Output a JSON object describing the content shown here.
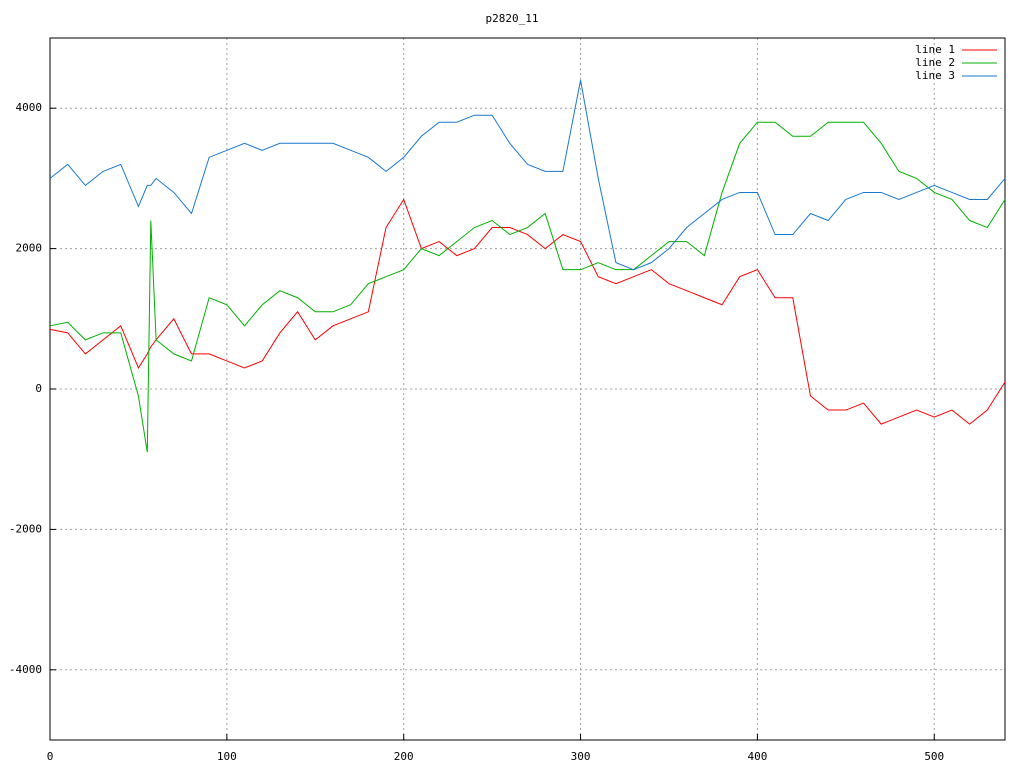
{
  "chart_data": {
    "type": "line",
    "title": "p2820_11",
    "x": [
      0,
      10,
      20,
      30,
      40,
      50,
      55,
      57,
      60,
      70,
      80,
      90,
      100,
      110,
      120,
      130,
      140,
      150,
      160,
      170,
      180,
      190,
      200,
      210,
      220,
      230,
      240,
      250,
      260,
      270,
      280,
      290,
      300,
      310,
      320,
      330,
      340,
      350,
      360,
      370,
      380,
      390,
      400,
      410,
      420,
      430,
      440,
      450,
      460,
      470,
      480,
      490,
      500,
      510,
      520,
      530,
      540
    ],
    "series": [
      {
        "name": "line 1",
        "color": "#ff0000",
        "values": [
          850,
          800,
          500,
          700,
          900,
          300,
          500,
          600,
          700,
          1000,
          500,
          500,
          400,
          300,
          400,
          800,
          1100,
          700,
          900,
          1000,
          1100,
          2300,
          2700,
          2000,
          2100,
          1900,
          2000,
          2300,
          2300,
          2200,
          2000,
          2200,
          2100,
          1600,
          1500,
          1600,
          1700,
          1500,
          1400,
          1300,
          1200,
          1600,
          1700,
          1300,
          1300,
          -100,
          -300,
          -300,
          -200,
          -500,
          -400,
          -300,
          -400,
          -300,
          -500,
          -300,
          100
        ]
      },
      {
        "name": "line 2",
        "color": "#00b000",
        "values": [
          900,
          950,
          700,
          800,
          800,
          -100,
          -900,
          2400,
          700,
          500,
          400,
          1300,
          1200,
          900,
          1200,
          1400,
          1300,
          1100,
          1100,
          1200,
          1500,
          1600,
          1700,
          2000,
          1900,
          2100,
          2300,
          2400,
          2200,
          2300,
          2500,
          1700,
          1700,
          1800,
          1700,
          1700,
          1900,
          2100,
          2100,
          1900,
          2800,
          3500,
          3800,
          3800,
          3600,
          3600,
          3800,
          3800,
          3800,
          3500,
          3100,
          3000,
          2800,
          2700,
          2400,
          2300,
          2700
        ]
      },
      {
        "name": "line 3",
        "color": "#1a78d0",
        "values": [
          3000,
          3200,
          2900,
          3100,
          3200,
          2600,
          2900,
          2900,
          3000,
          2800,
          2500,
          3300,
          3400,
          3500,
          3400,
          3500,
          3500,
          3500,
          3500,
          3400,
          3300,
          3100,
          3300,
          3600,
          3800,
          3800,
          3900,
          3900,
          3500,
          3200,
          3100,
          3100,
          4400,
          3000,
          1800,
          1700,
          1800,
          2000,
          2300,
          2500,
          2700,
          2800,
          2800,
          2200,
          2200,
          2500,
          2400,
          2700,
          2800,
          2800,
          2700,
          2800,
          2900,
          2800,
          2700,
          2700,
          3000
        ]
      }
    ],
    "xlim": [
      0,
      540
    ],
    "ylim": [
      -5000,
      5000
    ],
    "xticks": [
      0,
      100,
      200,
      300,
      400,
      500
    ],
    "yticks": [
      -4000,
      -2000,
      0,
      2000,
      4000
    ],
    "grid": true,
    "legend": "top-right"
  }
}
